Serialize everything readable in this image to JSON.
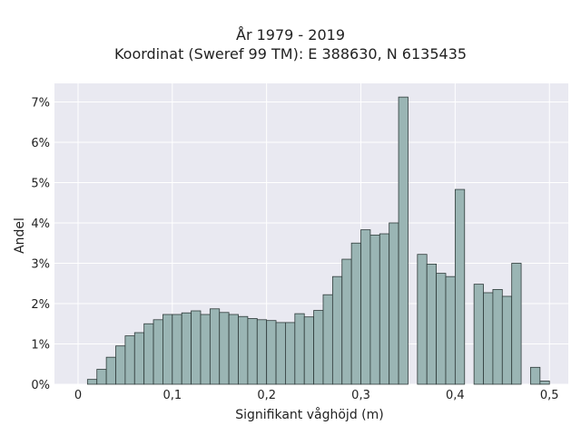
{
  "chart_data": {
    "type": "bar",
    "title": "År 1979 - 2019",
    "subtitle": "Koordinat (Sweref 99 TM): E 388630, N 6135435",
    "xlabel": "Signifikant våghöjd (m)",
    "ylabel": "Andel",
    "xlim": [
      -0.025,
      0.52
    ],
    "ylim": [
      0,
      0.0746
    ],
    "xticks": [
      0,
      0.1,
      0.2,
      0.3,
      0.4,
      0.5
    ],
    "xtick_labels": [
      "0",
      "0,1",
      "0,2",
      "0,3",
      "0,4",
      "0,5"
    ],
    "yticks": [
      0,
      0.01,
      0.02,
      0.03,
      0.04,
      0.05,
      0.06,
      0.07
    ],
    "ytick_labels": [
      "0%",
      "1%",
      "2%",
      "3%",
      "4%",
      "5%",
      "6%",
      "7%"
    ],
    "grid": true,
    "bin_width": 0.01,
    "bin_start": 0.01,
    "values": [
      0.0012,
      0.0037,
      0.0067,
      0.0095,
      0.012,
      0.0128,
      0.015,
      0.016,
      0.0173,
      0.0173,
      0.0177,
      0.0182,
      0.0173,
      0.0187,
      0.0178,
      0.0173,
      0.0168,
      0.0163,
      0.016,
      0.0158,
      0.0153,
      0.0153,
      0.0175,
      0.0167,
      0.0183,
      0.0222,
      0.0267,
      0.031,
      0.035,
      0.0383,
      0.037,
      0.0373,
      0.04,
      0.0712,
      0,
      0.0322,
      0.0298,
      0.0275,
      0.0267,
      0.0483,
      0,
      0.0248,
      0.0227,
      0.0235,
      0.0218,
      0.03,
      0,
      0.0042,
      0.0008
    ],
    "colors": {
      "bar_fill": "#9ab5b4",
      "bar_edge": "#2f3b3a",
      "plot_bg": "#e9e9f1",
      "grid": "#ffffff"
    }
  }
}
